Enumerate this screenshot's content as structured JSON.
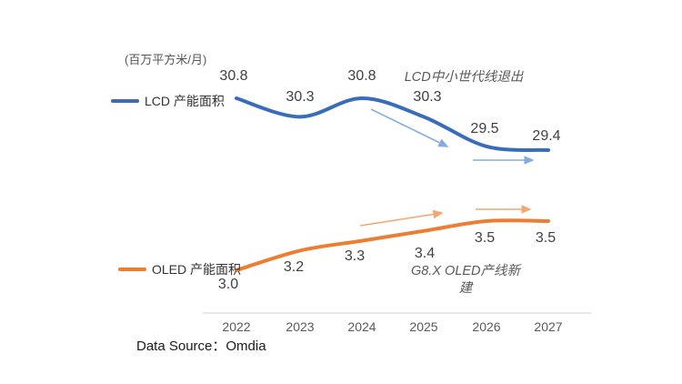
{
  "chart_data": {
    "type": "line",
    "title": "",
    "unit_label": "(百万平方米/月)",
    "categories": [
      "2022",
      "2023",
      "2024",
      "2025",
      "2026",
      "2027"
    ],
    "series": [
      {
        "name": "LCD 产能面积",
        "values": [
          30.8,
          30.3,
          30.8,
          30.3,
          29.5,
          29.4
        ],
        "color": "#3A6CBC",
        "trend_arrow_color": "#85ACE1"
      },
      {
        "name": "OLED 产能面积",
        "values": [
          3.0,
          3.2,
          3.3,
          3.4,
          3.5,
          3.5
        ],
        "color": "#ED7D31",
        "trend_arrow_color": "#F4A772"
      }
    ],
    "annotations": [
      {
        "text": "LCD中小世代线退出",
        "lines": [
          "LCD中小世代线退出"
        ]
      },
      {
        "text": "G8.X OLED产线新建",
        "lines": [
          "G8.X OLED产线新",
          "建"
        ]
      }
    ],
    "axis_line_color": "#D9D9D9",
    "grid": false,
    "legend_position": "left-of-line"
  },
  "footer": {
    "data_source": "Data Source：Omdia"
  }
}
